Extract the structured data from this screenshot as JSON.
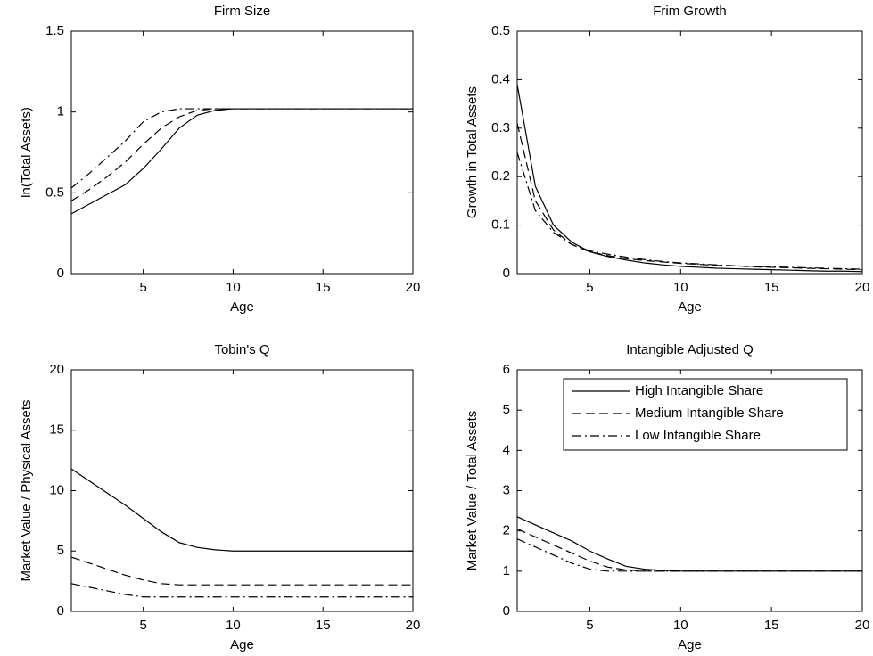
{
  "chart_data": [
    {
      "type": "line",
      "title": "Firm Size",
      "xlabel": "Age",
      "ylabel": "ln(Total Assets)",
      "x": [
        1,
        2,
        3,
        4,
        5,
        6,
        7,
        8,
        9,
        10,
        11,
        12,
        13,
        14,
        15,
        16,
        17,
        18,
        19,
        20
      ],
      "xlim": [
        1,
        20
      ],
      "xticks": [
        5,
        10,
        15,
        20
      ],
      "ylim": [
        0,
        1.5
      ],
      "yticks": [
        0,
        0.5,
        1,
        1.5
      ],
      "series": [
        {
          "color": "#000000",
          "style": "solid",
          "values": [
            0.37,
            0.43,
            0.49,
            0.55,
            0.65,
            0.77,
            0.9,
            0.98,
            1.01,
            1.02,
            1.02,
            1.02,
            1.02,
            1.02,
            1.02,
            1.02,
            1.02,
            1.02,
            1.02,
            1.02
          ]
        },
        {
          "color": "#000000",
          "style": "dashed",
          "values": [
            0.45,
            0.52,
            0.6,
            0.69,
            0.8,
            0.9,
            0.97,
            1.01,
            1.02,
            1.02,
            1.02,
            1.02,
            1.02,
            1.02,
            1.02,
            1.02,
            1.02,
            1.02,
            1.02,
            1.02
          ]
        },
        {
          "color": "#000000",
          "style": "dashdot",
          "values": [
            0.53,
            0.62,
            0.72,
            0.82,
            0.94,
            1.0,
            1.02,
            1.02,
            1.02,
            1.02,
            1.02,
            1.02,
            1.02,
            1.02,
            1.02,
            1.02,
            1.02,
            1.02,
            1.02,
            1.02
          ]
        }
      ]
    },
    {
      "type": "line",
      "title": "Frim Growth",
      "xlabel": "Age",
      "ylabel": "Growth in Total Assets",
      "x": [
        1,
        2,
        3,
        4,
        5,
        6,
        7,
        8,
        9,
        10,
        11,
        12,
        13,
        14,
        15,
        16,
        17,
        18,
        19,
        20
      ],
      "xlim": [
        1,
        20
      ],
      "xticks": [
        5,
        10,
        15,
        20
      ],
      "ylim": [
        0,
        0.5
      ],
      "yticks": [
        0,
        0.1,
        0.2,
        0.3,
        0.4,
        0.5
      ],
      "series": [
        {
          "color": "#000000",
          "style": "solid",
          "values": [
            0.39,
            0.18,
            0.1,
            0.065,
            0.045,
            0.035,
            0.028,
            0.022,
            0.018,
            0.015,
            0.013,
            0.011,
            0.01,
            0.009,
            0.008,
            0.007,
            0.006,
            0.005,
            0.005,
            0.004
          ]
        },
        {
          "color": "#000000",
          "style": "dashed",
          "values": [
            0.31,
            0.15,
            0.09,
            0.06,
            0.045,
            0.037,
            0.031,
            0.027,
            0.024,
            0.021,
            0.019,
            0.017,
            0.016,
            0.014,
            0.013,
            0.012,
            0.011,
            0.01,
            0.009,
            0.008
          ]
        },
        {
          "color": "#000000",
          "style": "dashdot",
          "values": [
            0.25,
            0.13,
            0.085,
            0.06,
            0.047,
            0.04,
            0.034,
            0.029,
            0.025,
            0.022,
            0.02,
            0.018,
            0.016,
            0.015,
            0.014,
            0.013,
            0.012,
            0.011,
            0.01,
            0.009
          ]
        }
      ]
    },
    {
      "type": "line",
      "title": "Tobin's Q",
      "xlabel": "Age",
      "ylabel": "Market Value / Physical Assets",
      "x": [
        1,
        2,
        3,
        4,
        5,
        6,
        7,
        8,
        9,
        10,
        11,
        12,
        13,
        14,
        15,
        16,
        17,
        18,
        19,
        20
      ],
      "xlim": [
        1,
        20
      ],
      "xticks": [
        5,
        10,
        15,
        20
      ],
      "ylim": [
        0,
        20
      ],
      "yticks": [
        0,
        5,
        10,
        15,
        20
      ],
      "series": [
        {
          "color": "#000000",
          "style": "solid",
          "values": [
            11.8,
            10.8,
            9.8,
            8.8,
            7.7,
            6.6,
            5.7,
            5.3,
            5.1,
            5.0,
            5.0,
            5.0,
            5.0,
            5.0,
            5.0,
            5.0,
            5.0,
            5.0,
            5.0,
            5.0
          ]
        },
        {
          "color": "#000000",
          "style": "dashed",
          "values": [
            4.5,
            4.0,
            3.5,
            3.0,
            2.6,
            2.3,
            2.2,
            2.2,
            2.2,
            2.2,
            2.2,
            2.2,
            2.2,
            2.2,
            2.2,
            2.2,
            2.2,
            2.2,
            2.2,
            2.2
          ]
        },
        {
          "color": "#000000",
          "style": "dashdot",
          "values": [
            2.3,
            2.0,
            1.7,
            1.4,
            1.2,
            1.2,
            1.2,
            1.2,
            1.2,
            1.2,
            1.2,
            1.2,
            1.2,
            1.2,
            1.2,
            1.2,
            1.2,
            1.2,
            1.2,
            1.2
          ]
        }
      ]
    },
    {
      "type": "line",
      "title": "Intangible Adjusted Q",
      "xlabel": "Age",
      "ylabel": "Market Value / Total Assets",
      "x": [
        1,
        2,
        3,
        4,
        5,
        6,
        7,
        8,
        9,
        10,
        11,
        12,
        13,
        14,
        15,
        16,
        17,
        18,
        19,
        20
      ],
      "xlim": [
        1,
        20
      ],
      "xticks": [
        5,
        10,
        15,
        20
      ],
      "ylim": [
        0,
        6
      ],
      "yticks": [
        0,
        1,
        2,
        3,
        4,
        5,
        6
      ],
      "legend": "upper right",
      "series": [
        {
          "name": "High Intangible Share",
          "color": "#000000",
          "style": "solid",
          "values": [
            2.35,
            2.15,
            1.95,
            1.75,
            1.5,
            1.3,
            1.12,
            1.05,
            1.02,
            1.0,
            1.0,
            1.0,
            1.0,
            1.0,
            1.0,
            1.0,
            1.0,
            1.0,
            1.0,
            1.0
          ]
        },
        {
          "name": "Medium Intangible Share",
          "color": "#000000",
          "style": "dashed",
          "values": [
            2.05,
            1.85,
            1.65,
            1.45,
            1.25,
            1.1,
            1.03,
            1.0,
            1.0,
            1.0,
            1.0,
            1.0,
            1.0,
            1.0,
            1.0,
            1.0,
            1.0,
            1.0,
            1.0,
            1.0
          ]
        },
        {
          "name": "Low Intangible Share",
          "color": "#000000",
          "style": "dashdot",
          "values": [
            1.8,
            1.6,
            1.4,
            1.2,
            1.05,
            1.0,
            1.0,
            1.0,
            1.0,
            1.0,
            1.0,
            1.0,
            1.0,
            1.0,
            1.0,
            1.0,
            1.0,
            1.0,
            1.0,
            1.0
          ]
        }
      ]
    }
  ]
}
